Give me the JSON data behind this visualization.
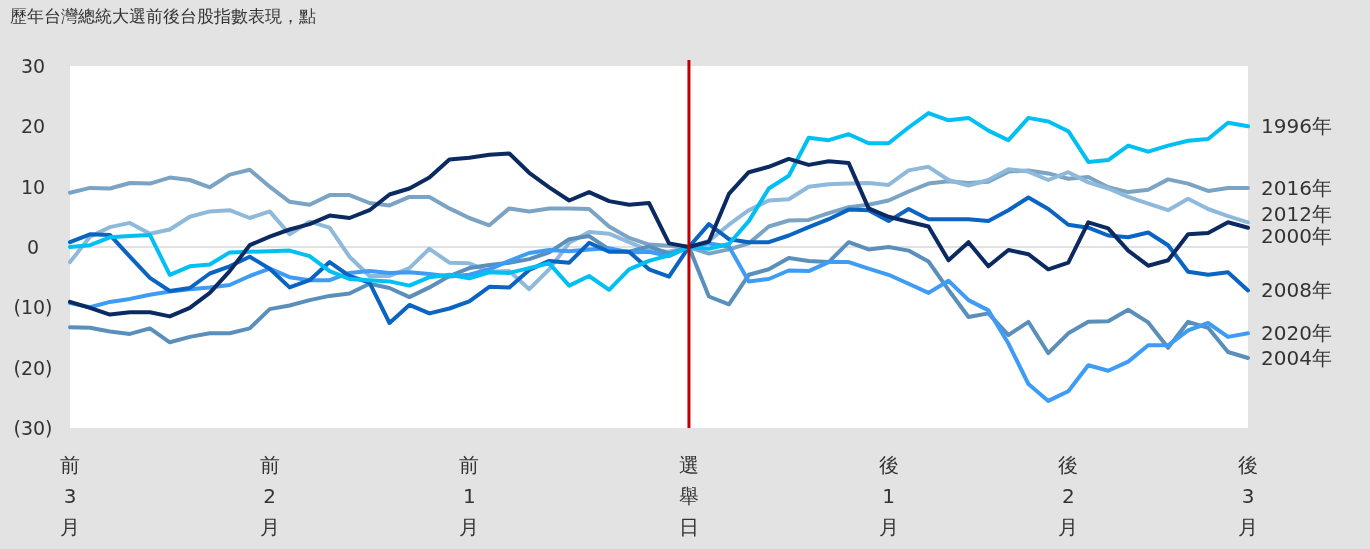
{
  "chart_data": {
    "type": "line",
    "title": "歷年台灣總統大選前後台股指數表現，點",
    "categories": [
      "前3月",
      null,
      null,
      null,
      null,
      null,
      null,
      null,
      null,
      null,
      "前2月",
      null,
      null,
      null,
      null,
      null,
      null,
      null,
      null,
      null,
      "前1月",
      null,
      null,
      null,
      null,
      null,
      null,
      null,
      null,
      null,
      null,
      "選舉日",
      null,
      null,
      null,
      null,
      null,
      null,
      null,
      null,
      null,
      "後1月",
      null,
      null,
      null,
      null,
      null,
      null,
      null,
      null,
      "後2月",
      null,
      null,
      null,
      null,
      null,
      null,
      null,
      null,
      "後3月"
    ],
    "ylim": [
      -30,
      30
    ],
    "yticks": [
      30,
      20,
      10,
      0,
      {
        "value": -10,
        "label": "(10)"
      },
      {
        "value": -20,
        "label": "(20)"
      },
      {
        "value": -30,
        "label": "(30)"
      }
    ],
    "ref_lines": [
      {
        "axis": "y",
        "value": 0,
        "color": "#d9d9d9"
      },
      {
        "axis": "x",
        "value": "選舉日",
        "color": "#c00000"
      }
    ],
    "series": [
      {
        "name": "2016年",
        "color": "#7ba3c4",
        "values": [
          9,
          9.8,
          9.7,
          10.6,
          10.5,
          11.5,
          11.1,
          9.9,
          12,
          12.8,
          10,
          7.5,
          7,
          8.6,
          8.6,
          7.3,
          6.9,
          8.3,
          8.3,
          6.4,
          4.8,
          3.6,
          6.4,
          5.9,
          6.4,
          6.4,
          6.3,
          3.4,
          1.5,
          0.4,
          0.2,
          0,
          -1.1,
          -0.4,
          0.6,
          3.4,
          4.4,
          4.5,
          5.6,
          6.6,
          7,
          7.7,
          9.2,
          10.5,
          10.9,
          10.6,
          10.8,
          12.5,
          12.7,
          12.2,
          11.3,
          11.6,
          9.9,
          9.1,
          9.5,
          11.2,
          10.5,
          9.3,
          9.8,
          9.8
        ]
      },
      {
        "name": "2012年",
        "color": "#8fb9da",
        "values": [
          -2.5,
          1.7,
          3.3,
          4,
          2.2,
          2.9,
          5,
          5.9,
          6.1,
          4.8,
          5.9,
          2.1,
          4.2,
          3.2,
          -1.6,
          -4.8,
          -4.8,
          -3.5,
          -0.3,
          -2.6,
          -2.7,
          -4.1,
          -4,
          -7,
          -3.7,
          0.7,
          2.5,
          2.2,
          0.8,
          -0.6,
          -0.8,
          0,
          1,
          3.7,
          6.1,
          7.7,
          7.9,
          10,
          10.4,
          10.5,
          10.6,
          10.3,
          12.7,
          13.3,
          11.1,
          10.2,
          11.1,
          12.9,
          12.5,
          11.1,
          12.4,
          10.7,
          9.7,
          8.3,
          7.2,
          6.1,
          8,
          6.3,
          5.1,
          4.1
        ]
      },
      {
        "name": "2004年",
        "color": "#5b8fbb",
        "values": [
          -13.3,
          -13.4,
          -14,
          -14.4,
          -13.5,
          -15.8,
          -14.9,
          -14.3,
          -14.3,
          -13.5,
          -10.3,
          -9.7,
          -8.8,
          -8.1,
          -7.7,
          -6.1,
          -6.8,
          -8.3,
          -6.7,
          -4.8,
          -3.5,
          -3,
          -2.6,
          -2,
          -0.9,
          1.3,
          1.8,
          -0.4,
          -0.8,
          0.1,
          -1.1,
          0,
          -8.2,
          -9.5,
          -4.6,
          -3.7,
          -1.8,
          -2.3,
          -2.5,
          0.8,
          -0.4,
          0,
          -0.6,
          -2.4,
          -7.1,
          -11.6,
          -11,
          -14.6,
          -12.4,
          -17.6,
          -14.3,
          -12.4,
          -12.3,
          -10.4,
          -12.5,
          -16.7,
          -12.4,
          -13.4,
          -17.4,
          -18.4
        ]
      },
      {
        "name": "2020年",
        "color": "#3f9cf4",
        "values": [
          -9.3,
          -10,
          -9.1,
          -8.6,
          -7.9,
          -7.4,
          -7,
          -6.7,
          -6.3,
          -4.8,
          -3.6,
          -5,
          -5.5,
          -5.5,
          -4.3,
          -4,
          -4.3,
          -4.2,
          -4.5,
          -4.9,
          -4.6,
          -3.7,
          -2.3,
          -1,
          -0.5,
          -0.7,
          -0.4,
          -0.2,
          -0.9,
          -0.8,
          -1.5,
          0,
          0.6,
          0.1,
          -5.7,
          -5.3,
          -3.9,
          -4,
          -2.5,
          -2.5,
          -3.6,
          -4.6,
          -6.1,
          -7.6,
          -5.6,
          -8.8,
          -10.5,
          -16,
          -22.7,
          -25.5,
          -23.9,
          -19.6,
          -20.5,
          -19,
          -16.3,
          -16.3,
          -13.8,
          -12.6,
          -14.9,
          -14.3
        ]
      },
      {
        "name": "2008年",
        "color": "#0a64c2",
        "values": [
          0.8,
          2.1,
          2,
          -1.6,
          -5.1,
          -7.3,
          -6.8,
          -4.4,
          -3.2,
          -1.6,
          -3.6,
          -6.7,
          -5.5,
          -2.5,
          -4.8,
          -5.9,
          -12.6,
          -9.6,
          -11,
          -10.2,
          -9,
          -6.6,
          -6.7,
          -3.8,
          -2.3,
          -2.6,
          0.7,
          -0.8,
          -0.8,
          -3.7,
          -4.9,
          0,
          3.8,
          1.3,
          0.8,
          0.8,
          1.9,
          3.3,
          4.6,
          6.2,
          6.1,
          4.3,
          6.3,
          4.6,
          4.6,
          4.6,
          4.3,
          6.1,
          8.2,
          6.3,
          3.7,
          3.2,
          1.9,
          1.6,
          2.4,
          0.3,
          -4.1,
          -4.6,
          -4.2,
          -7.2
        ]
      },
      {
        "name": "1996年",
        "color": "#00c0f3",
        "values": [
          0,
          0.3,
          1.6,
          1.8,
          2,
          -4.6,
          -3.2,
          -2.9,
          -0.9,
          -0.8,
          -0.7,
          -0.6,
          -1.5,
          -4,
          -5.3,
          -5.5,
          -5.7,
          -6.4,
          -5,
          -4.6,
          -5.2,
          -4.2,
          -4.3,
          -3.5,
          -2.7,
          -6.4,
          -4.8,
          -7.1,
          -3.7,
          -2.3,
          -1.4,
          0,
          -0.3,
          0.5,
          4.3,
          9.7,
          11.8,
          18.1,
          17.7,
          18.7,
          17.2,
          17.2,
          19.8,
          22.2,
          21,
          21.4,
          19.3,
          17.7,
          21.4,
          20.8,
          19.2,
          14.1,
          14.4,
          16.8,
          15.8,
          16.8,
          17.6,
          17.9,
          20.6,
          20
        ]
      },
      {
        "name": "2000年",
        "color": "#0c2a62",
        "values": [
          -9.1,
          -10.1,
          -11.2,
          -10.8,
          -10.8,
          -11.5,
          -10.1,
          -7.6,
          -4,
          0.3,
          1.7,
          2.9,
          3.8,
          5.2,
          4.8,
          6.1,
          8.7,
          9.7,
          11.5,
          14.5,
          14.8,
          15.3,
          15.5,
          12.3,
          9.9,
          7.7,
          9.1,
          7.6,
          7,
          7.3,
          0.6,
          0,
          0.9,
          8.8,
          12.4,
          13.3,
          14.6,
          13.6,
          14.2,
          13.9,
          6.4,
          5,
          4.2,
          3.4,
          -2.2,
          0.8,
          -3.2,
          -0.5,
          -1.2,
          -3.7,
          -2.6,
          4.1,
          3.1,
          -0.6,
          -3.1,
          -2.2,
          2.1,
          2.3,
          4.1,
          3.2
        ]
      }
    ]
  }
}
